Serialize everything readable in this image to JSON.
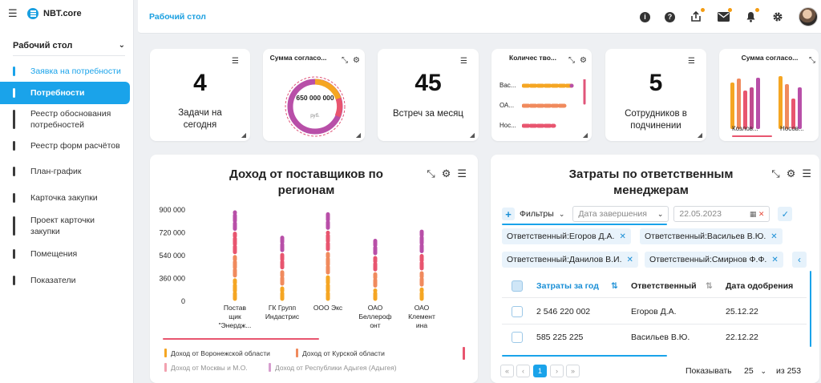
{
  "app": {
    "name": "NBT.core"
  },
  "sidebar": {
    "section": "Рабочий стол",
    "items": [
      {
        "label": "Заявка на потребности"
      },
      {
        "label": "Потребности"
      },
      {
        "label": "Реестр обоснования потребностей"
      },
      {
        "label": "Реестр форм расчётов"
      },
      {
        "label": "План-график"
      },
      {
        "label": "Карточка закупки"
      },
      {
        "label": "Проект карточки закупки"
      },
      {
        "label": "Помещения"
      },
      {
        "label": "Показатели"
      }
    ]
  },
  "header": {
    "title": "Рабочий стол"
  },
  "kpis": {
    "tasks": {
      "value": "4",
      "label": "Задачи на сегодня"
    },
    "meetings": {
      "value": "45",
      "label": "Встреч за месяц"
    },
    "staff": {
      "value": "5",
      "label": "Сотрудников в подчинении"
    }
  },
  "mini_donut": {
    "title": "Сумма согласо...",
    "center": "650 000 000",
    "unit": "руб."
  },
  "mini_hbar": {
    "title": "Количес тво...",
    "rows": [
      "Вас...",
      "ОА...",
      "Нос..."
    ]
  },
  "mini_vbar": {
    "title": "Сумма согласо...",
    "labels": [
      "Козлов...",
      "Носов..."
    ]
  },
  "income_chart": {
    "title": "Доход от поставщиков по регионам",
    "chart_data": {
      "type": "bar",
      "categories": [
        "Постав щик \"Энердж...",
        "ГК Групп Индастрис",
        "ООО Экс",
        "ОАО Беллероф онт",
        "ОАО Клемент ина"
      ],
      "yticks": [
        "900 000",
        "720 000",
        "540 000",
        "360 000",
        "0"
      ],
      "ylim": [
        0,
        900000
      ],
      "series": [
        {
          "name": "Доход от Воронежской области",
          "color": "#f5a623",
          "values": [
            230000,
            150000,
            260000,
            130000,
            140000
          ]
        },
        {
          "name": "Доход от Курской области",
          "color": "#f08a5d",
          "values": [
            230000,
            160000,
            230000,
            160000,
            160000
          ]
        },
        {
          "name": "Доход от Москвы и М.О.",
          "color": "#e8556f",
          "values": [
            230000,
            170000,
            210000,
            160000,
            170000
          ]
        },
        {
          "name": "Доход от Республики Адыгея (Адыгея)",
          "color": "#b84fa8",
          "values": [
            210000,
            170000,
            190000,
            170000,
            240000
          ]
        }
      ]
    }
  },
  "costs": {
    "title": "Затраты по ответственным менеджерам",
    "filters_label": "Фильтры",
    "date_field": "Дата завершения",
    "date_value": "22.05.2023",
    "chips": [
      "Ответственный:Егоров Д.А.",
      "Ответственный:Васильев В.Ю.",
      "Ответственный:Данилов В.И.",
      "Ответственный:Смирнов Ф.Ф."
    ],
    "columns": [
      "Затраты за год",
      "Ответственный",
      "Дата одобрения"
    ],
    "rows": [
      {
        "amount": "2 546 220 002",
        "person": "Егоров Д.А.",
        "date": "25.12.22"
      },
      {
        "amount": "585 225 225",
        "person": "Васильев В.Ю.",
        "date": "22.12.22"
      }
    ],
    "page": "1",
    "show_label": "Показывать",
    "page_size": "25",
    "of_label": "из 253"
  }
}
